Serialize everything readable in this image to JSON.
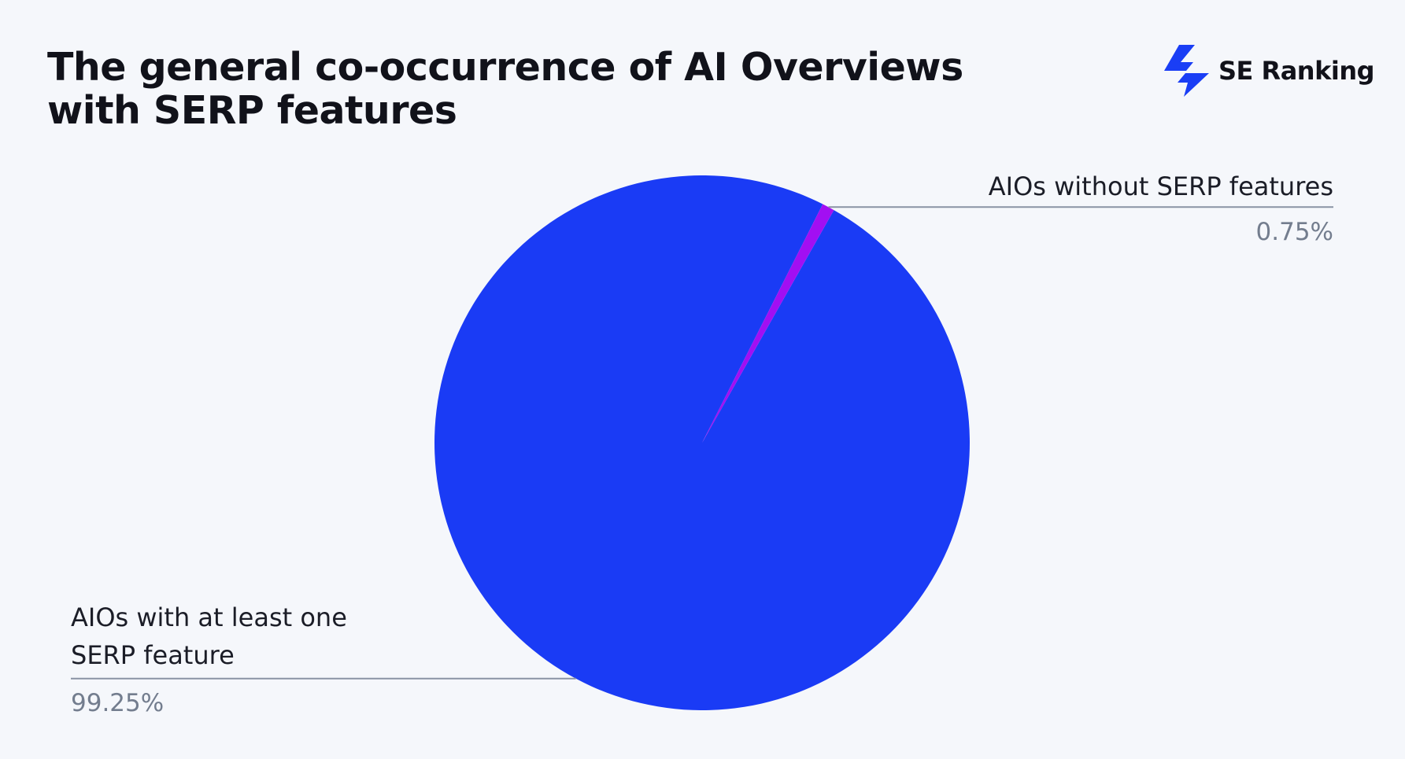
{
  "title_lines": [
    "The general co-occurrence of AI Overviews",
    "with SERP features"
  ],
  "brand": {
    "name": "SE Ranking",
    "icon": "se-ranking-lightning-logo-icon",
    "color": "#1a3ef5"
  },
  "chart_data": {
    "type": "pie",
    "title": "The general co-occurrence of AI Overviews with SERP features",
    "start_angle_deg": 0,
    "direction": "clockwise",
    "slices": [
      {
        "label": "AIOs with at least one SERP feature",
        "value": 99.25,
        "value_label": "99.25%",
        "color": "#1a3bf5"
      },
      {
        "label": "AIOs without SERP features",
        "value": 0.75,
        "value_label": "0.75%",
        "color": "#a20ff2"
      }
    ],
    "label_line_color": "#8a93a4"
  }
}
